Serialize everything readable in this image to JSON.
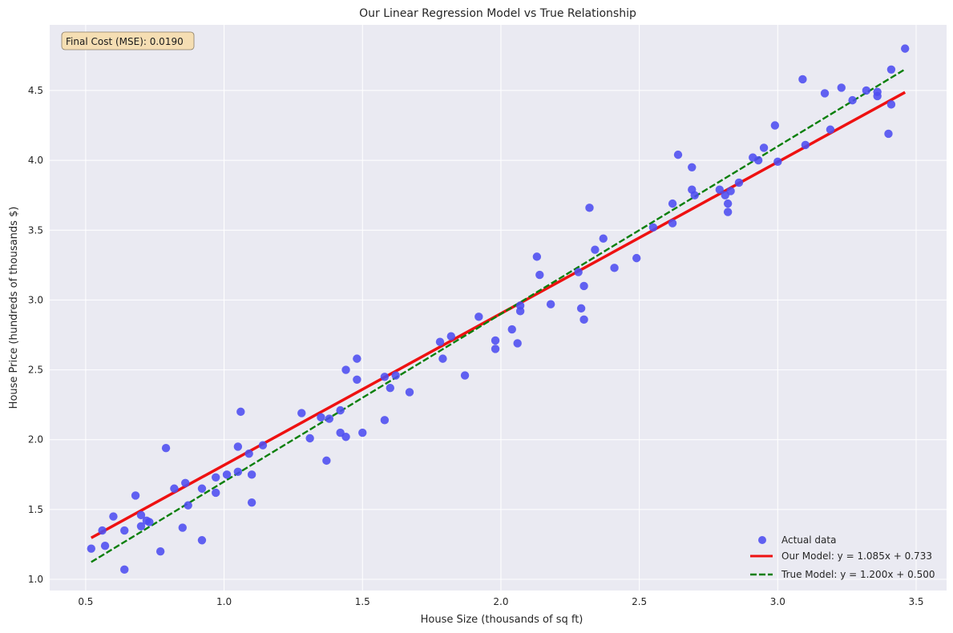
{
  "chart_data": {
    "type": "scatter",
    "title": "Our Linear Regression Model vs True Relationship",
    "xlabel": "House Size (thousands of sq ft)",
    "ylabel": "House Price (hundreds of thousands $)",
    "xlim": [
      0.37,
      3.61
    ],
    "ylim": [
      0.92,
      4.97
    ],
    "xticks": [
      0.5,
      1.0,
      1.5,
      2.0,
      2.5,
      3.0,
      3.5
    ],
    "xtick_labels": [
      "0.5",
      "1.0",
      "1.5",
      "2.0",
      "2.5",
      "3.0",
      "3.5"
    ],
    "yticks": [
      1.0,
      1.5,
      2.0,
      2.5,
      3.0,
      3.5,
      4.0,
      4.5
    ],
    "ytick_labels": [
      "1.0",
      "1.5",
      "2.0",
      "2.5",
      "3.0",
      "3.5",
      "4.0",
      "4.5"
    ],
    "grid": true,
    "legend_position": "bottom-right",
    "annotation": "Final Cost (MSE): 0.0190",
    "series": [
      {
        "name": "Actual data",
        "kind": "scatter",
        "color": "#4c4cf0",
        "points": [
          [
            0.52,
            1.22
          ],
          [
            0.56,
            1.35
          ],
          [
            0.57,
            1.24
          ],
          [
            0.6,
            1.45
          ],
          [
            0.64,
            1.35
          ],
          [
            0.64,
            1.07
          ],
          [
            0.68,
            1.6
          ],
          [
            0.7,
            1.46
          ],
          [
            0.7,
            1.38
          ],
          [
            0.72,
            1.42
          ],
          [
            0.73,
            1.41
          ],
          [
            0.77,
            1.2
          ],
          [
            0.79,
            1.94
          ],
          [
            0.82,
            1.65
          ],
          [
            0.85,
            1.37
          ],
          [
            0.86,
            1.69
          ],
          [
            0.87,
            1.53
          ],
          [
            0.92,
            1.65
          ],
          [
            0.92,
            1.28
          ],
          [
            0.97,
            1.73
          ],
          [
            0.97,
            1.62
          ],
          [
            1.01,
            1.75
          ],
          [
            1.05,
            1.77
          ],
          [
            1.05,
            1.95
          ],
          [
            1.06,
            2.2
          ],
          [
            1.09,
            1.9
          ],
          [
            1.1,
            1.75
          ],
          [
            1.1,
            1.55
          ],
          [
            1.14,
            1.96
          ],
          [
            1.28,
            2.19
          ],
          [
            1.31,
            2.01
          ],
          [
            1.35,
            2.16
          ],
          [
            1.37,
            1.85
          ],
          [
            1.38,
            2.15
          ],
          [
            1.42,
            2.05
          ],
          [
            1.42,
            2.21
          ],
          [
            1.44,
            2.02
          ],
          [
            1.44,
            2.5
          ],
          [
            1.48,
            2.43
          ],
          [
            1.48,
            2.58
          ],
          [
            1.5,
            2.05
          ],
          [
            1.58,
            2.14
          ],
          [
            1.58,
            2.45
          ],
          [
            1.6,
            2.37
          ],
          [
            1.62,
            2.46
          ],
          [
            1.67,
            2.34
          ],
          [
            1.78,
            2.7
          ],
          [
            1.79,
            2.58
          ],
          [
            1.82,
            2.74
          ],
          [
            1.87,
            2.46
          ],
          [
            1.92,
            2.88
          ],
          [
            1.98,
            2.71
          ],
          [
            1.98,
            2.65
          ],
          [
            2.04,
            2.79
          ],
          [
            2.06,
            2.69
          ],
          [
            2.07,
            2.96
          ],
          [
            2.07,
            2.92
          ],
          [
            2.13,
            3.31
          ],
          [
            2.14,
            3.18
          ],
          [
            2.18,
            2.97
          ],
          [
            2.28,
            3.2
          ],
          [
            2.29,
            2.94
          ],
          [
            2.3,
            2.86
          ],
          [
            2.3,
            3.1
          ],
          [
            2.32,
            3.66
          ],
          [
            2.34,
            3.36
          ],
          [
            2.37,
            3.44
          ],
          [
            2.41,
            3.23
          ],
          [
            2.49,
            3.3
          ],
          [
            2.55,
            3.52
          ],
          [
            2.62,
            3.69
          ],
          [
            2.62,
            3.55
          ],
          [
            2.64,
            4.04
          ],
          [
            2.69,
            3.79
          ],
          [
            2.69,
            3.95
          ],
          [
            2.7,
            3.75
          ],
          [
            2.79,
            3.79
          ],
          [
            2.81,
            3.75
          ],
          [
            2.82,
            3.69
          ],
          [
            2.82,
            3.63
          ],
          [
            2.83,
            3.78
          ],
          [
            2.86,
            3.84
          ],
          [
            2.91,
            4.02
          ],
          [
            2.93,
            4.0
          ],
          [
            2.95,
            4.09
          ],
          [
            2.99,
            4.25
          ],
          [
            3.0,
            3.99
          ],
          [
            3.09,
            4.58
          ],
          [
            3.1,
            4.11
          ],
          [
            3.17,
            4.48
          ],
          [
            3.19,
            4.22
          ],
          [
            3.23,
            4.52
          ],
          [
            3.27,
            4.43
          ],
          [
            3.32,
            4.5
          ],
          [
            3.36,
            4.49
          ],
          [
            3.36,
            4.46
          ],
          [
            3.4,
            4.19
          ],
          [
            3.41,
            4.65
          ],
          [
            3.41,
            4.4
          ],
          [
            3.46,
            4.8
          ]
        ]
      },
      {
        "name": "Our Model: y = 1.085x + 0.733",
        "kind": "line",
        "slope": 1.085,
        "intercept": 0.733,
        "x_range": [
          0.52,
          3.46
        ],
        "color": "#ee1111",
        "dash": "solid"
      },
      {
        "name": "True Model: y = 1.200x + 0.500",
        "kind": "line",
        "slope": 1.2,
        "intercept": 0.5,
        "x_range": [
          0.52,
          3.46
        ],
        "color": "#0a7f0a",
        "dash": "dashed"
      }
    ]
  }
}
